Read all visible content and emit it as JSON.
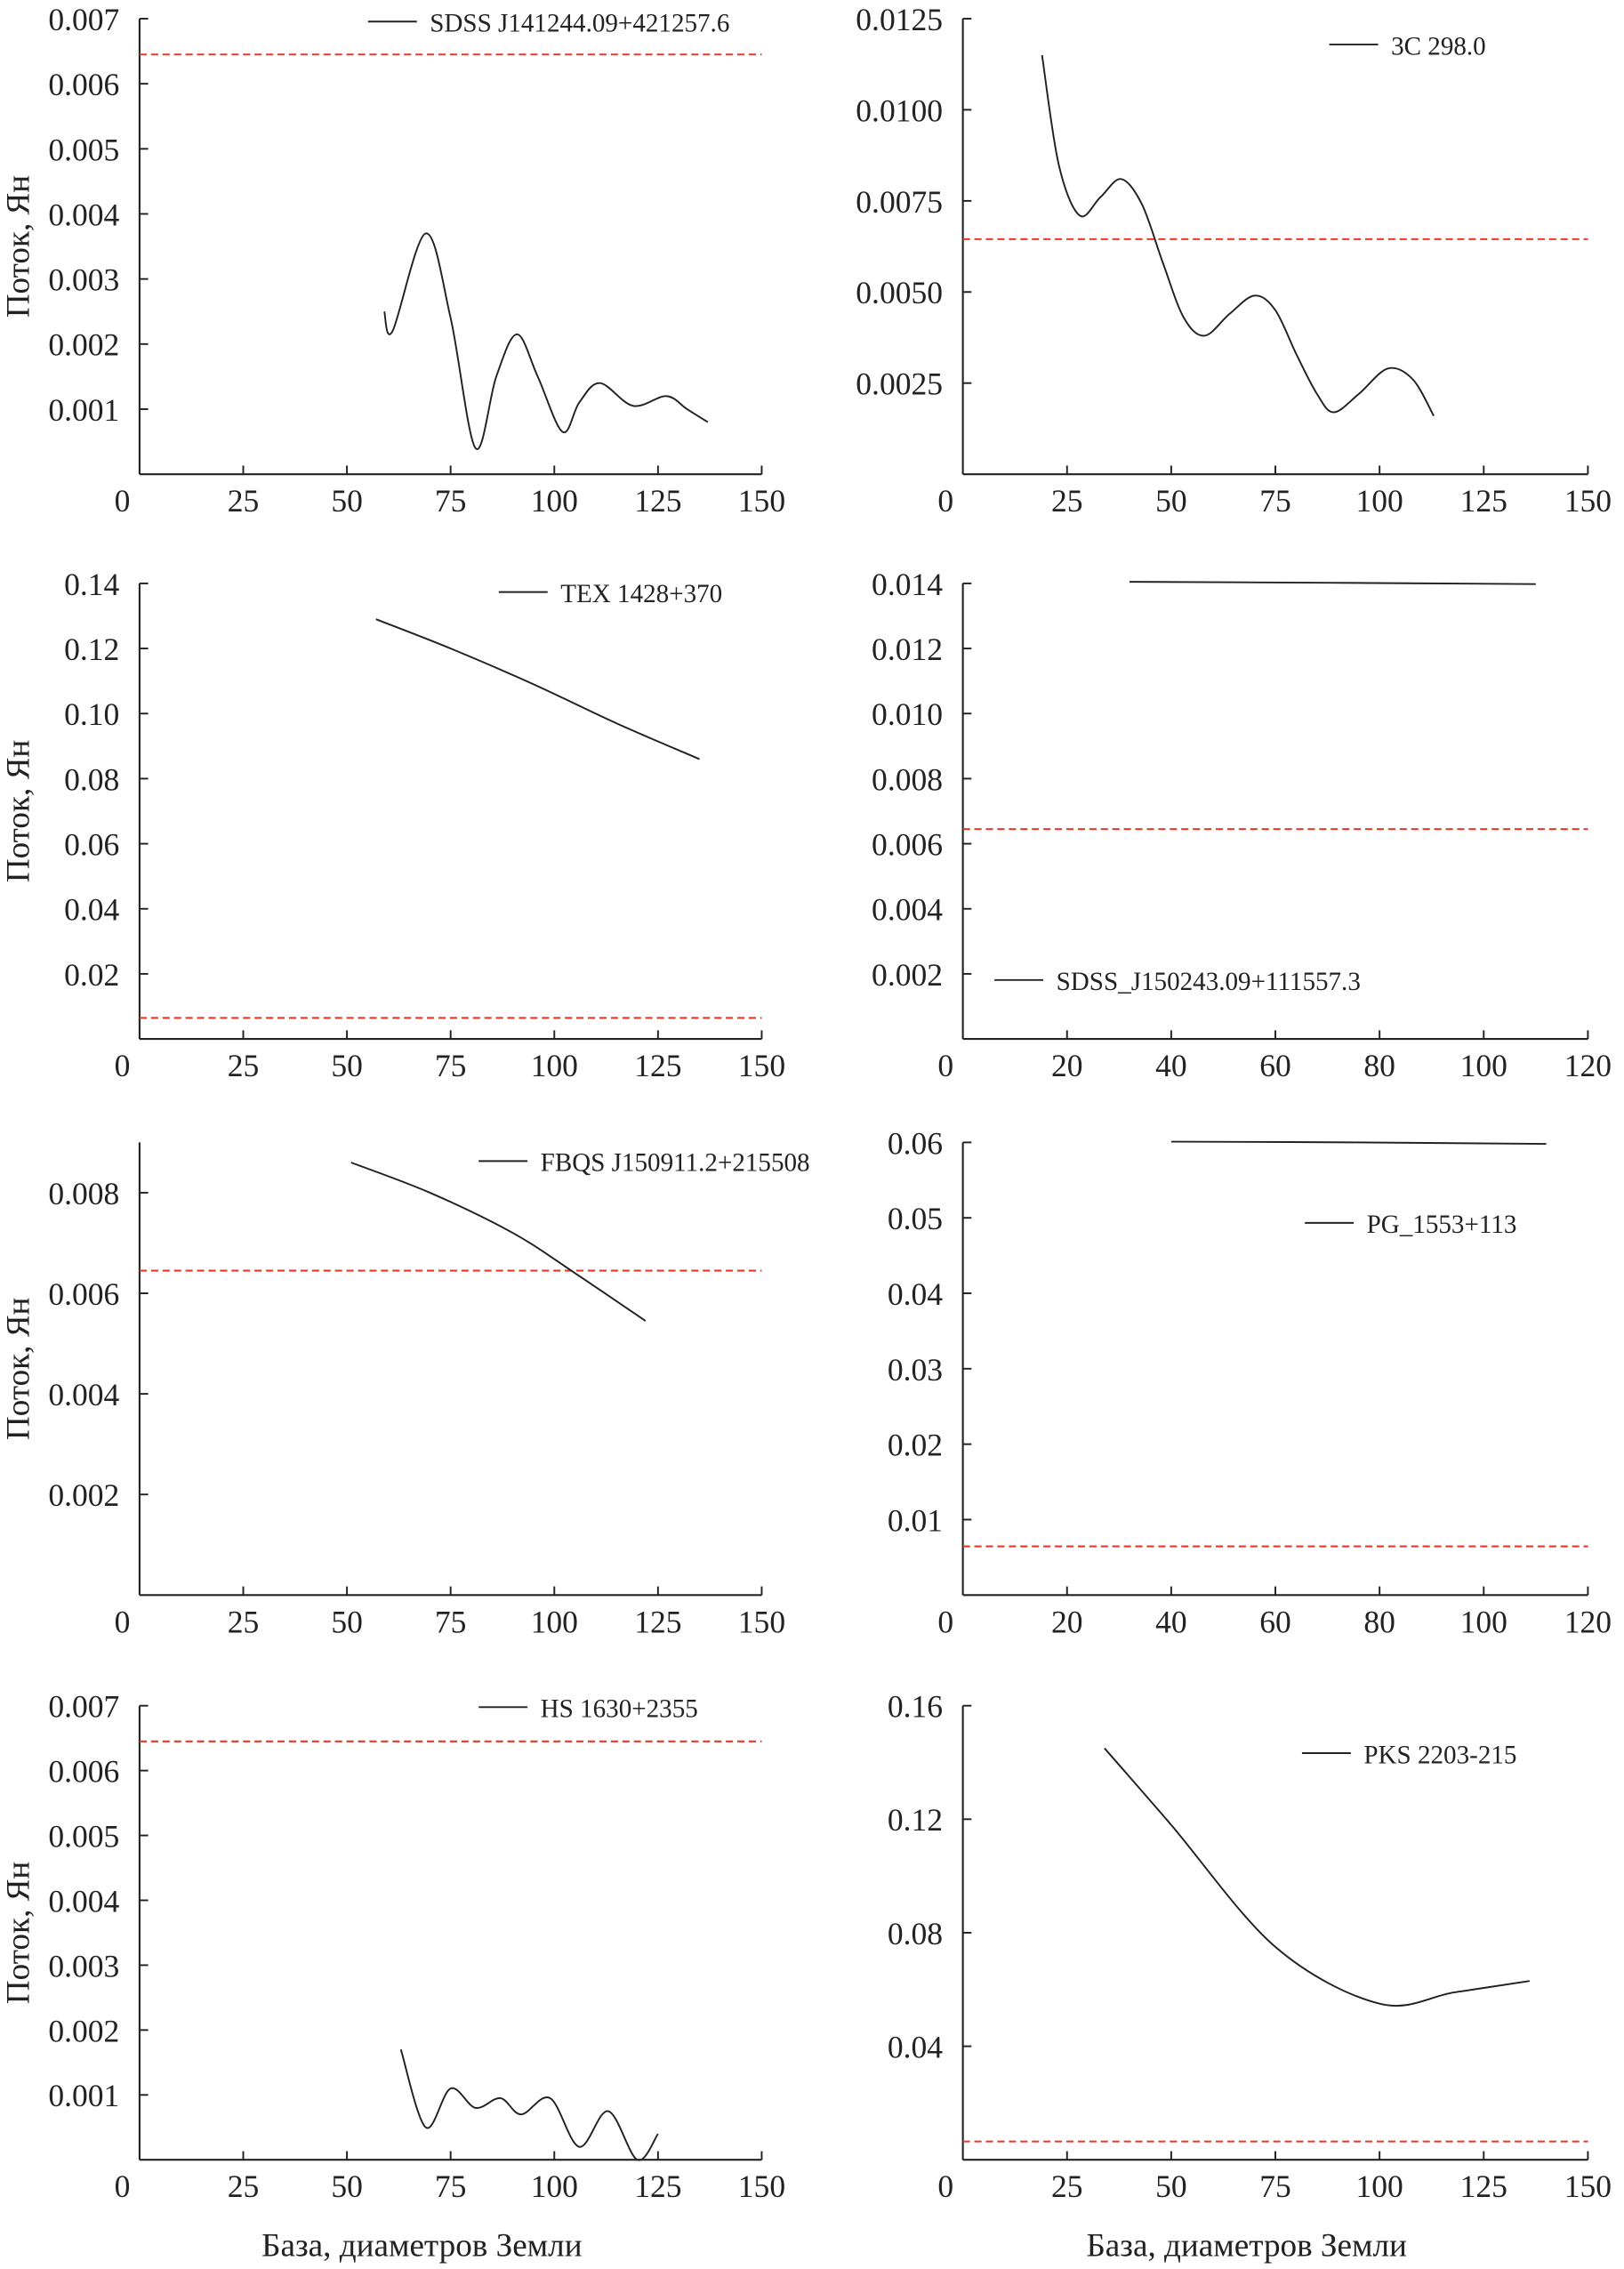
{
  "chart_data": [
    {
      "type": "line",
      "legend": "SDSS J141244.09+421257.6",
      "xlim": [
        0,
        150
      ],
      "ylim": [
        0,
        0.007
      ],
      "xticks": [
        "0",
        "25",
        "50",
        "75",
        "100",
        "125",
        "150"
      ],
      "yticks": [
        "0.001",
        "0.002",
        "0.003",
        "0.004",
        "0.005",
        "0.006",
        "0.007"
      ],
      "ytick_values": [
        0.001,
        0.002,
        0.003,
        0.004,
        0.005,
        0.006,
        0.007
      ],
      "ylabel": "Поток, Ян",
      "xlabel": "",
      "threshold": 0.00645,
      "x": [
        59,
        61,
        69,
        75,
        81,
        86,
        91,
        96,
        102,
        106,
        111,
        119,
        127,
        132,
        137
      ],
      "y": [
        0.0025,
        0.0022,
        0.0037,
        0.0024,
        0.0004,
        0.0015,
        0.00215,
        0.0015,
        0.00065,
        0.0011,
        0.0014,
        0.00105,
        0.0012,
        0.001,
        0.0008
      ]
    },
    {
      "type": "line",
      "legend": "3C 298.0",
      "xlim": [
        0,
        150
      ],
      "ylim": [
        0,
        0.0125
      ],
      "xticks": [
        "0",
        "25",
        "50",
        "75",
        "100",
        "125",
        "150"
      ],
      "yticks": [
        "0.0025",
        "0.0050",
        "0.0075",
        "0.0100",
        "0.0125"
      ],
      "ytick_values": [
        0.0025,
        0.005,
        0.0075,
        0.01,
        0.0125
      ],
      "ylabel": "",
      "xlabel": "",
      "threshold": 0.00645,
      "x": [
        19,
        23,
        28,
        33,
        38,
        43,
        48,
        53,
        58,
        64,
        70,
        75,
        80,
        85,
        89,
        95,
        102,
        108,
        113
      ],
      "y": [
        0.0115,
        0.0085,
        0.0071,
        0.0076,
        0.0081,
        0.0074,
        0.0058,
        0.0043,
        0.0038,
        0.0044,
        0.0049,
        0.0045,
        0.0033,
        0.0022,
        0.0017,
        0.0022,
        0.0029,
        0.0026,
        0.0016
      ]
    },
    {
      "type": "line",
      "legend": "TEX 1428+370",
      "xlim": [
        0,
        150
      ],
      "ylim": [
        0,
        0.14
      ],
      "xticks": [
        "0",
        "25",
        "50",
        "75",
        "100",
        "125",
        "150"
      ],
      "yticks": [
        "0.02",
        "0.04",
        "0.06",
        "0.08",
        "0.10",
        "0.12",
        "0.14"
      ],
      "ytick_values": [
        0.02,
        0.04,
        0.06,
        0.08,
        0.1,
        0.12,
        0.14
      ],
      "ylabel": "Поток, Ян",
      "xlabel": "",
      "threshold": 0.00645,
      "x": [
        57,
        75,
        95,
        115,
        135
      ],
      "y": [
        0.129,
        0.12,
        0.109,
        0.097,
        0.086
      ]
    },
    {
      "type": "line",
      "legend": "SDSS_J150243.09+111557.3",
      "xlim": [
        0,
        120
      ],
      "ylim": [
        0,
        0.014
      ],
      "xticks": [
        "0",
        "20",
        "40",
        "60",
        "80",
        "100",
        "120"
      ],
      "yticks": [
        "0.002",
        "0.004",
        "0.006",
        "0.008",
        "0.010",
        "0.012",
        "0.014"
      ],
      "ytick_values": [
        0.002,
        0.004,
        0.006,
        0.008,
        0.01,
        0.012,
        0.014
      ],
      "ylabel": "",
      "xlabel": "",
      "threshold": 0.00645,
      "x": [
        32,
        70,
        110
      ],
      "y": [
        0.01405,
        0.01402,
        0.01398
      ]
    },
    {
      "type": "line",
      "legend": "FBQS J150911.2+215508",
      "xlim": [
        0,
        150
      ],
      "ylim": [
        0,
        0.009
      ],
      "xticks": [
        "0",
        "25",
        "50",
        "75",
        "100",
        "125",
        "150"
      ],
      "yticks": [
        "0.002",
        "0.004",
        "0.006",
        "0.008"
      ],
      "ytick_values": [
        0.002,
        0.004,
        0.006,
        0.008
      ],
      "ylabel": "Поток, Ян",
      "xlabel": "",
      "threshold": 0.00645,
      "x": [
        51,
        70,
        90,
        105,
        122
      ],
      "y": [
        0.0086,
        0.008,
        0.0072,
        0.0064,
        0.00545
      ]
    },
    {
      "type": "line",
      "legend": "PG_1553+113",
      "xlim": [
        0,
        120
      ],
      "ylim": [
        0,
        0.06
      ],
      "xticks": [
        "0",
        "20",
        "40",
        "60",
        "80",
        "100",
        "120"
      ],
      "yticks": [
        "0.01",
        "0.02",
        "0.03",
        "0.04",
        "0.05",
        "0.06"
      ],
      "ytick_values": [
        0.01,
        0.02,
        0.03,
        0.04,
        0.05,
        0.06
      ],
      "ylabel": "",
      "xlabel": "",
      "threshold": 0.00645,
      "x": [
        40,
        75,
        112
      ],
      "y": [
        0.0601,
        0.06,
        0.0598
      ]
    },
    {
      "type": "line",
      "legend": "HS 1630+2355",
      "xlim": [
        0,
        150
      ],
      "ylim": [
        0,
        0.007
      ],
      "xticks": [
        "0",
        "25",
        "50",
        "75",
        "100",
        "125",
        "150"
      ],
      "yticks": [
        "0.001",
        "0.002",
        "0.003",
        "0.004",
        "0.005",
        "0.006",
        "0.007"
      ],
      "ytick_values": [
        0.001,
        0.002,
        0.003,
        0.004,
        0.005,
        0.006,
        0.007
      ],
      "ylabel": "Поток, Ян",
      "xlabel": "База, диаметров Земли",
      "threshold": 0.00645,
      "x": [
        63,
        69,
        75,
        81,
        87,
        92,
        99,
        106,
        113,
        120,
        125
      ],
      "y": [
        0.0017,
        0.0005,
        0.0011,
        0.0008,
        0.00095,
        0.0007,
        0.00095,
        0.0002,
        0.00075,
        0.0,
        0.0004
      ]
    },
    {
      "type": "line",
      "legend": "PKS 2203-215",
      "xlim": [
        0,
        150
      ],
      "ylim": [
        0,
        0.16
      ],
      "xticks": [
        "0",
        "25",
        "50",
        "75",
        "100",
        "125",
        "150"
      ],
      "yticks": [
        "0.04",
        "0.08",
        "0.12",
        "0.16"
      ],
      "ytick_values": [
        0.04,
        0.08,
        0.12,
        0.16
      ],
      "ylabel": "",
      "xlabel": "База, диаметров Земли",
      "threshold": 0.00645,
      "x": [
        34,
        50,
        75,
        100,
        118,
        136
      ],
      "y": [
        0.145,
        0.118,
        0.075,
        0.055,
        0.059,
        0.063
      ]
    }
  ],
  "colors": {
    "curve": "#222222",
    "threshold": "#e8382a",
    "axis": "#222222"
  }
}
